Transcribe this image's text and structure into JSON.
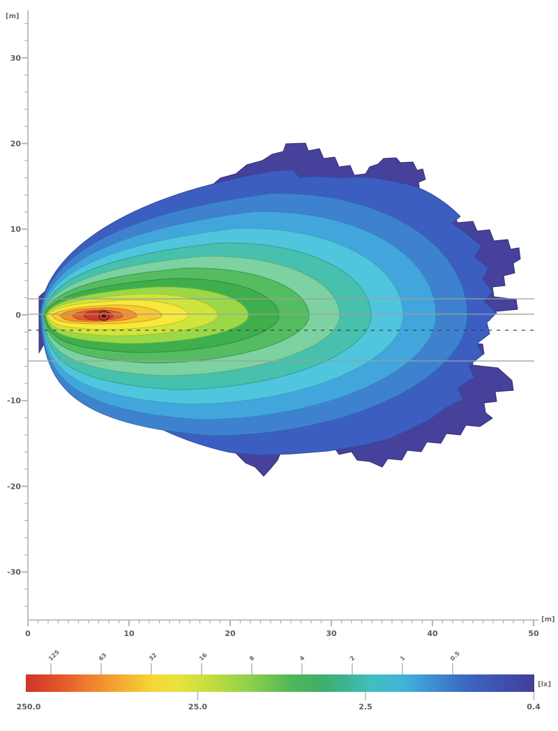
{
  "chart_data": {
    "type": "heatmap",
    "subtype": "isolux-falsecolor-contour",
    "title": "",
    "x_axis": {
      "unit": "[m]",
      "tick_labels": [
        "0",
        "10",
        "20",
        "30",
        "40",
        "50"
      ],
      "range": [
        0,
        50
      ],
      "minor_tick_step_m": 1
    },
    "y_axis": {
      "unit": "[m]",
      "tick_labels": [
        "30",
        "20",
        "10",
        "0",
        "-10",
        "-20",
        "-30"
      ],
      "range": [
        -35,
        35
      ],
      "minor_tick_step_m": 2
    },
    "colorbar": {
      "unit": "[lx]",
      "scale": "logarithmic",
      "bottom_tick_labels": [
        "250.0",
        "25.0",
        "2.5",
        "0.4"
      ],
      "top_tick_labels": [
        "125",
        "63",
        "32",
        "16",
        "8",
        "4",
        "2",
        "1",
        "0.5"
      ],
      "gradient_hex": [
        "#cf3527",
        "#e1512a",
        "#ee7c2e",
        "#f4ad33",
        "#f5d735",
        "#c4de3e",
        "#8fd04a",
        "#52b75a",
        "#3fae68",
        "#40bfc0",
        "#41b4d9",
        "#3f8ed2",
        "#3b66bf",
        "#423f95"
      ]
    },
    "contour_band_colors_outer_to_inner": [
      "#46419b",
      "#3c5ec0",
      "#3e82cf",
      "#42a6dc",
      "#4fc5de",
      "#47c0ad",
      "#7ed1a1",
      "#56bc62",
      "#3fae4c",
      "#9ad84a",
      "#cfe43c",
      "#f6e93a",
      "#f8c932",
      "#f1932b",
      "#e4602c",
      "#d23927"
    ],
    "hotspot": {
      "x_m": 7.5,
      "y_m": 0,
      "max_value_lx": 250
    },
    "beam_extent": {
      "x_min_m": 1,
      "x_max_m": 49,
      "y_min_m": -19,
      "y_max_m": 20
    },
    "road_lines": {
      "solid_y_m": [
        "1.8",
        "0.0",
        "-5.4"
      ],
      "dashed_y_m": [
        "-1.8"
      ]
    }
  },
  "colors": {
    "background": "#ffffff",
    "axis_line": "#aab0b0",
    "tick_label": "#5c5c5c",
    "road_line": "#9aa0a0",
    "road_line_dashed": "#3b3f3f"
  }
}
